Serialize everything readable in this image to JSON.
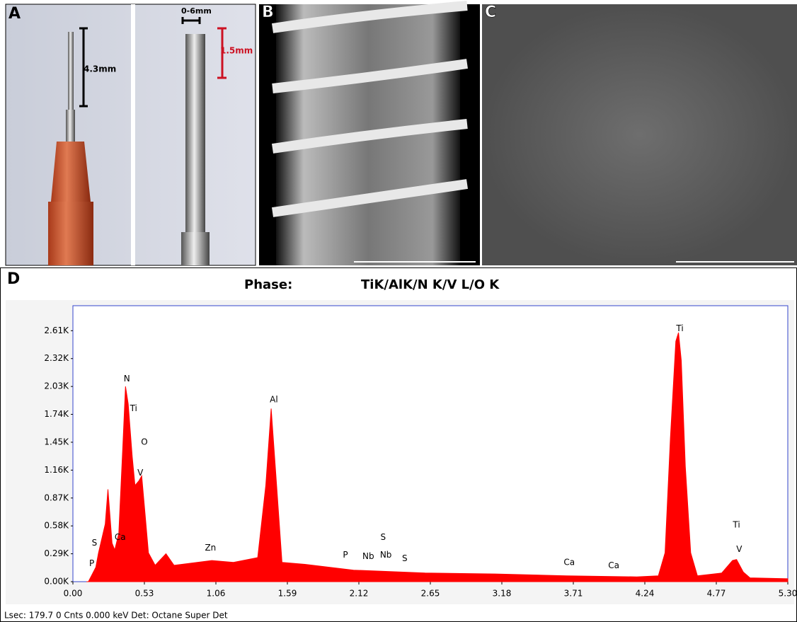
{
  "panels": {
    "a": {
      "label": "A",
      "length_label": "4.3mm",
      "width_label": "0-6mm",
      "thread_label": "1.5mm"
    },
    "b": {
      "label": "B"
    },
    "c": {
      "label": "C"
    }
  },
  "chart_data": {
    "type": "area",
    "panel_label": "D",
    "title": "Phase:",
    "subtitle": "TiK/AlK/N K/V L/O K",
    "footer": "Lsec: 179.7 0 Cnts  0.000 keV Det: Octane Super Det",
    "color": "#ff0000",
    "x": [
      0.1,
      0.115,
      0.17,
      0.19,
      0.24,
      0.26,
      0.29,
      0.31,
      0.34,
      0.37,
      0.39,
      0.41,
      0.44,
      0.46,
      0.49,
      0.51,
      0.535,
      0.56,
      0.61,
      0.69,
      0.75,
      1.03,
      1.19,
      1.37,
      1.43,
      1.47,
      1.51,
      1.55,
      1.72,
      2.08,
      2.61,
      3.13,
      3.66,
      4.18,
      4.34,
      4.39,
      4.43,
      4.47,
      4.49,
      4.51,
      4.54,
      4.58,
      4.63,
      4.81,
      4.89,
      4.92,
      4.97,
      5.02,
      5.3
    ],
    "values": [
      0,
      0,
      150,
      300,
      600,
      960,
      400,
      330,
      500,
      1400,
      2030,
      1850,
      1300,
      1000,
      1050,
      1100,
      700,
      300,
      170,
      290,
      170,
      220,
      200,
      250,
      1000,
      1800,
      1000,
      200,
      180,
      120,
      90,
      80,
      60,
      50,
      60,
      300,
      1500,
      2500,
      2590,
      2300,
      1200,
      300,
      60,
      90,
      220,
      230,
      100,
      40,
      30
    ],
    "xlim": [
      0,
      5.3
    ],
    "ylim": [
      0,
      2870
    ],
    "xticks": [
      {
        "value": 0,
        "label": "0.00"
      },
      0.53,
      1.06,
      1.59,
      2.12,
      2.65,
      3.18,
      3.71,
      4.24,
      4.77,
      {
        "value": 5.3,
        "label": "5.30"
      }
    ],
    "yticks": [
      {
        "value": 0,
        "label": "0.00K"
      },
      {
        "value": 290,
        "label": "0.29K"
      },
      {
        "value": 580,
        "label": "0.58K"
      },
      {
        "value": 870,
        "label": "0.87K"
      },
      {
        "value": 1160,
        "label": "1.16K"
      },
      {
        "value": 1450,
        "label": "1.45K"
      },
      {
        "value": 1740,
        "label": "1.74K"
      },
      {
        "value": 2030,
        "label": "2.03K"
      },
      {
        "value": 2320,
        "label": "2.32K"
      },
      {
        "value": 2610,
        "label": "2.61K"
      }
    ],
    "annotations": [
      {
        "text": "P",
        "x": 0.14,
        "y": 186
      },
      {
        "text": "S",
        "x": 0.16,
        "y": 400
      },
      {
        "text": "Ca",
        "x": 0.35,
        "y": 460
      },
      {
        "text": "N",
        "x": 0.4,
        "y": 2110
      },
      {
        "text": "Ti",
        "x": 0.45,
        "y": 1800
      },
      {
        "text": "O",
        "x": 0.53,
        "y": 1450
      },
      {
        "text": "V",
        "x": 0.5,
        "y": 1130
      },
      {
        "text": "Zn",
        "x": 1.02,
        "y": 350
      },
      {
        "text": "Al",
        "x": 1.49,
        "y": 1890
      },
      {
        "text": "P",
        "x": 2.02,
        "y": 275
      },
      {
        "text": "Nb",
        "x": 2.19,
        "y": 260
      },
      {
        "text": "S",
        "x": 2.3,
        "y": 460
      },
      {
        "text": "Nb",
        "x": 2.32,
        "y": 275
      },
      {
        "text": "S",
        "x": 2.46,
        "y": 240
      },
      {
        "text": "Ca",
        "x": 3.68,
        "y": 200
      },
      {
        "text": "Ca",
        "x": 4.01,
        "y": 165
      },
      {
        "text": "Ti",
        "x": 4.5,
        "y": 2630
      },
      {
        "text": "Ti",
        "x": 4.92,
        "y": 590
      },
      {
        "text": "V",
        "x": 4.94,
        "y": 335
      }
    ]
  }
}
